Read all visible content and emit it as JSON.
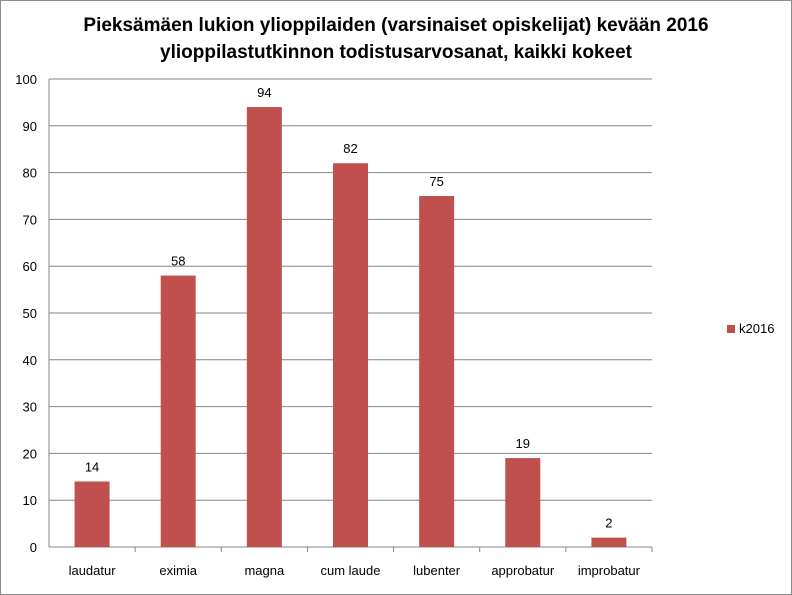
{
  "chart_data": {
    "type": "bar",
    "title_lines": [
      "Pieksämäen lukion ylioppilaiden (varsinaiset opiskelijat) kevään 2016",
      "ylioppilastutkinnon todistusarvosanat, kaikki kokeet"
    ],
    "categories": [
      "laudatur",
      "eximia",
      "magna",
      "cum laude",
      "lubenter",
      "approbatur",
      "improbatur"
    ],
    "series": [
      {
        "name": "k2016",
        "values": [
          14,
          58,
          94,
          82,
          75,
          19,
          2
        ],
        "color": "#C0504D"
      }
    ],
    "ylim": [
      0,
      100
    ],
    "yticks": [
      0,
      10,
      20,
      30,
      40,
      50,
      60,
      70,
      80,
      90,
      100
    ],
    "grid": true,
    "legend_position": "right",
    "xlabel": "",
    "ylabel": ""
  }
}
